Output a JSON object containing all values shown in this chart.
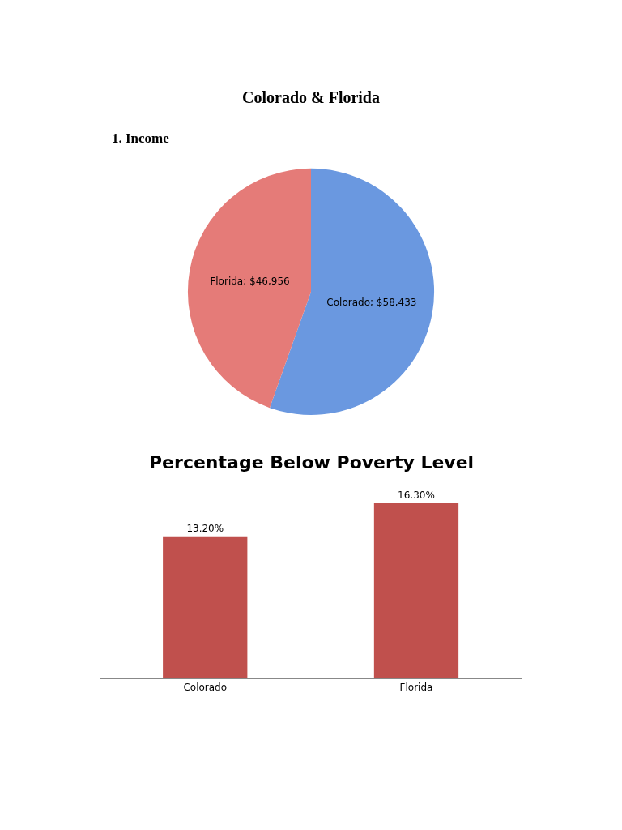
{
  "chart_data": [
    {
      "type": "pie",
      "title": "Colorado & Florida",
      "subtitle": "1. Income",
      "categories": [
        null,
        null
      ],
      "values": [
        58433,
        46956
      ],
      "colors": [
        "#6a98e0",
        "#e57b78"
      ],
      "value_labels": [
        "Colorado; $58,433",
        "Florida; $46,956"
      ]
    },
    {
      "type": "bar",
      "title": "Percentage Below Poverty Level",
      "categories": [
        "Colorado",
        "Florida"
      ],
      "values": [
        13.2,
        16.3
      ],
      "color": "#c0504d",
      "value_labels": [
        "13.20%",
        "16.30%"
      ]
    }
  ]
}
